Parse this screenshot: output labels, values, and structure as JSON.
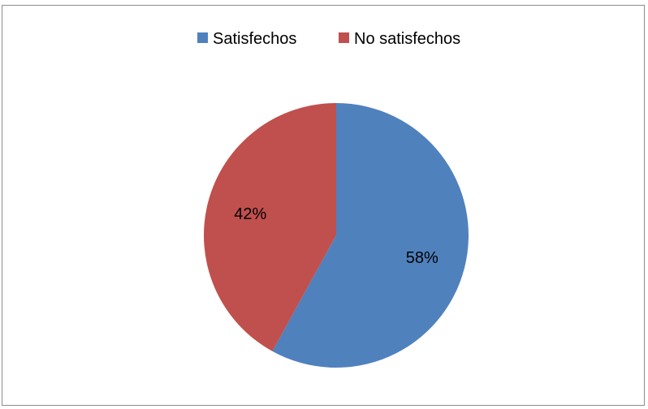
{
  "chart_data": {
    "type": "pie",
    "title": "",
    "legend_position": "top",
    "slices": [
      {
        "name": "Satisfechos",
        "value": 58,
        "label": "58%",
        "color": "#4f81bd"
      },
      {
        "name": "No satisfechos",
        "value": 42,
        "label": "42%",
        "color": "#c0504d"
      }
    ]
  }
}
